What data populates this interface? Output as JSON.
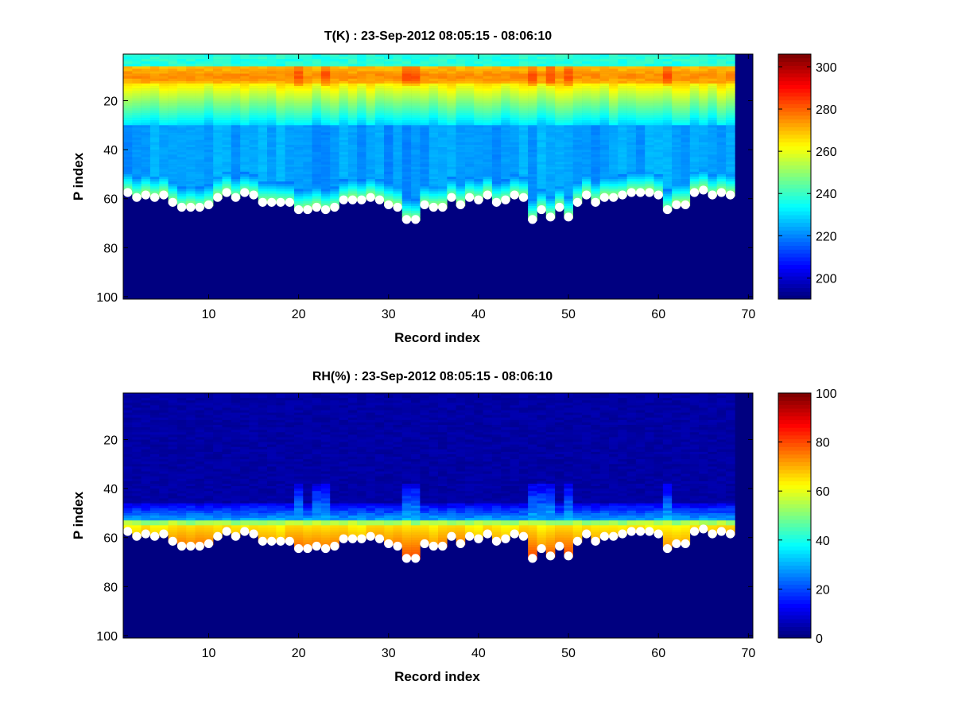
{
  "chart_data": [
    {
      "type": "heatmap",
      "title": "T(K) : 23-Sep-2012 08:05:15 - 08:06:10",
      "xlabel": "Record index",
      "ylabel": "P index",
      "xlim": [
        0.5,
        70.5
      ],
      "ylim": [
        1,
        101
      ],
      "y_reversed": true,
      "xticks": [
        10,
        20,
        30,
        40,
        50,
        60,
        70
      ],
      "yticks": [
        20,
        40,
        60,
        80,
        100
      ],
      "colormap": "jet",
      "colorbar": {
        "min": 190,
        "max": 306,
        "ticks": [
          200,
          220,
          240,
          260,
          280,
          300
        ]
      },
      "records": 68,
      "marker_color": "#ffffff"
    },
    {
      "type": "heatmap",
      "title": "RH(%) : 23-Sep-2012 08:05:15 - 08:06:10",
      "xlabel": "Record index",
      "ylabel": "P index",
      "xlim": [
        0.5,
        70.5
      ],
      "ylim": [
        1,
        101
      ],
      "y_reversed": true,
      "xticks": [
        10,
        20,
        30,
        40,
        50,
        60,
        70
      ],
      "yticks": [
        20,
        40,
        60,
        80,
        100
      ],
      "colormap": "jet",
      "colorbar": {
        "min": 0,
        "max": 100,
        "ticks": [
          0,
          20,
          40,
          60,
          80,
          100
        ]
      },
      "records": 68,
      "marker_color": "#ffffff"
    }
  ],
  "surface_level": [
    57,
    59,
    58,
    59,
    58,
    61,
    63,
    63,
    63,
    62,
    59,
    57,
    59,
    57,
    58,
    61,
    61,
    61,
    61,
    64,
    64,
    63,
    64,
    63,
    60,
    60,
    60,
    59,
    60,
    62,
    63,
    68,
    68,
    62,
    63,
    63,
    59,
    62,
    59,
    60,
    58,
    61,
    60,
    58,
    59,
    68,
    64,
    67,
    63,
    67,
    61,
    58,
    61,
    59,
    59,
    58,
    57,
    57,
    57,
    58,
    64,
    62,
    62,
    57,
    56,
    58,
    57,
    58
  ]
}
